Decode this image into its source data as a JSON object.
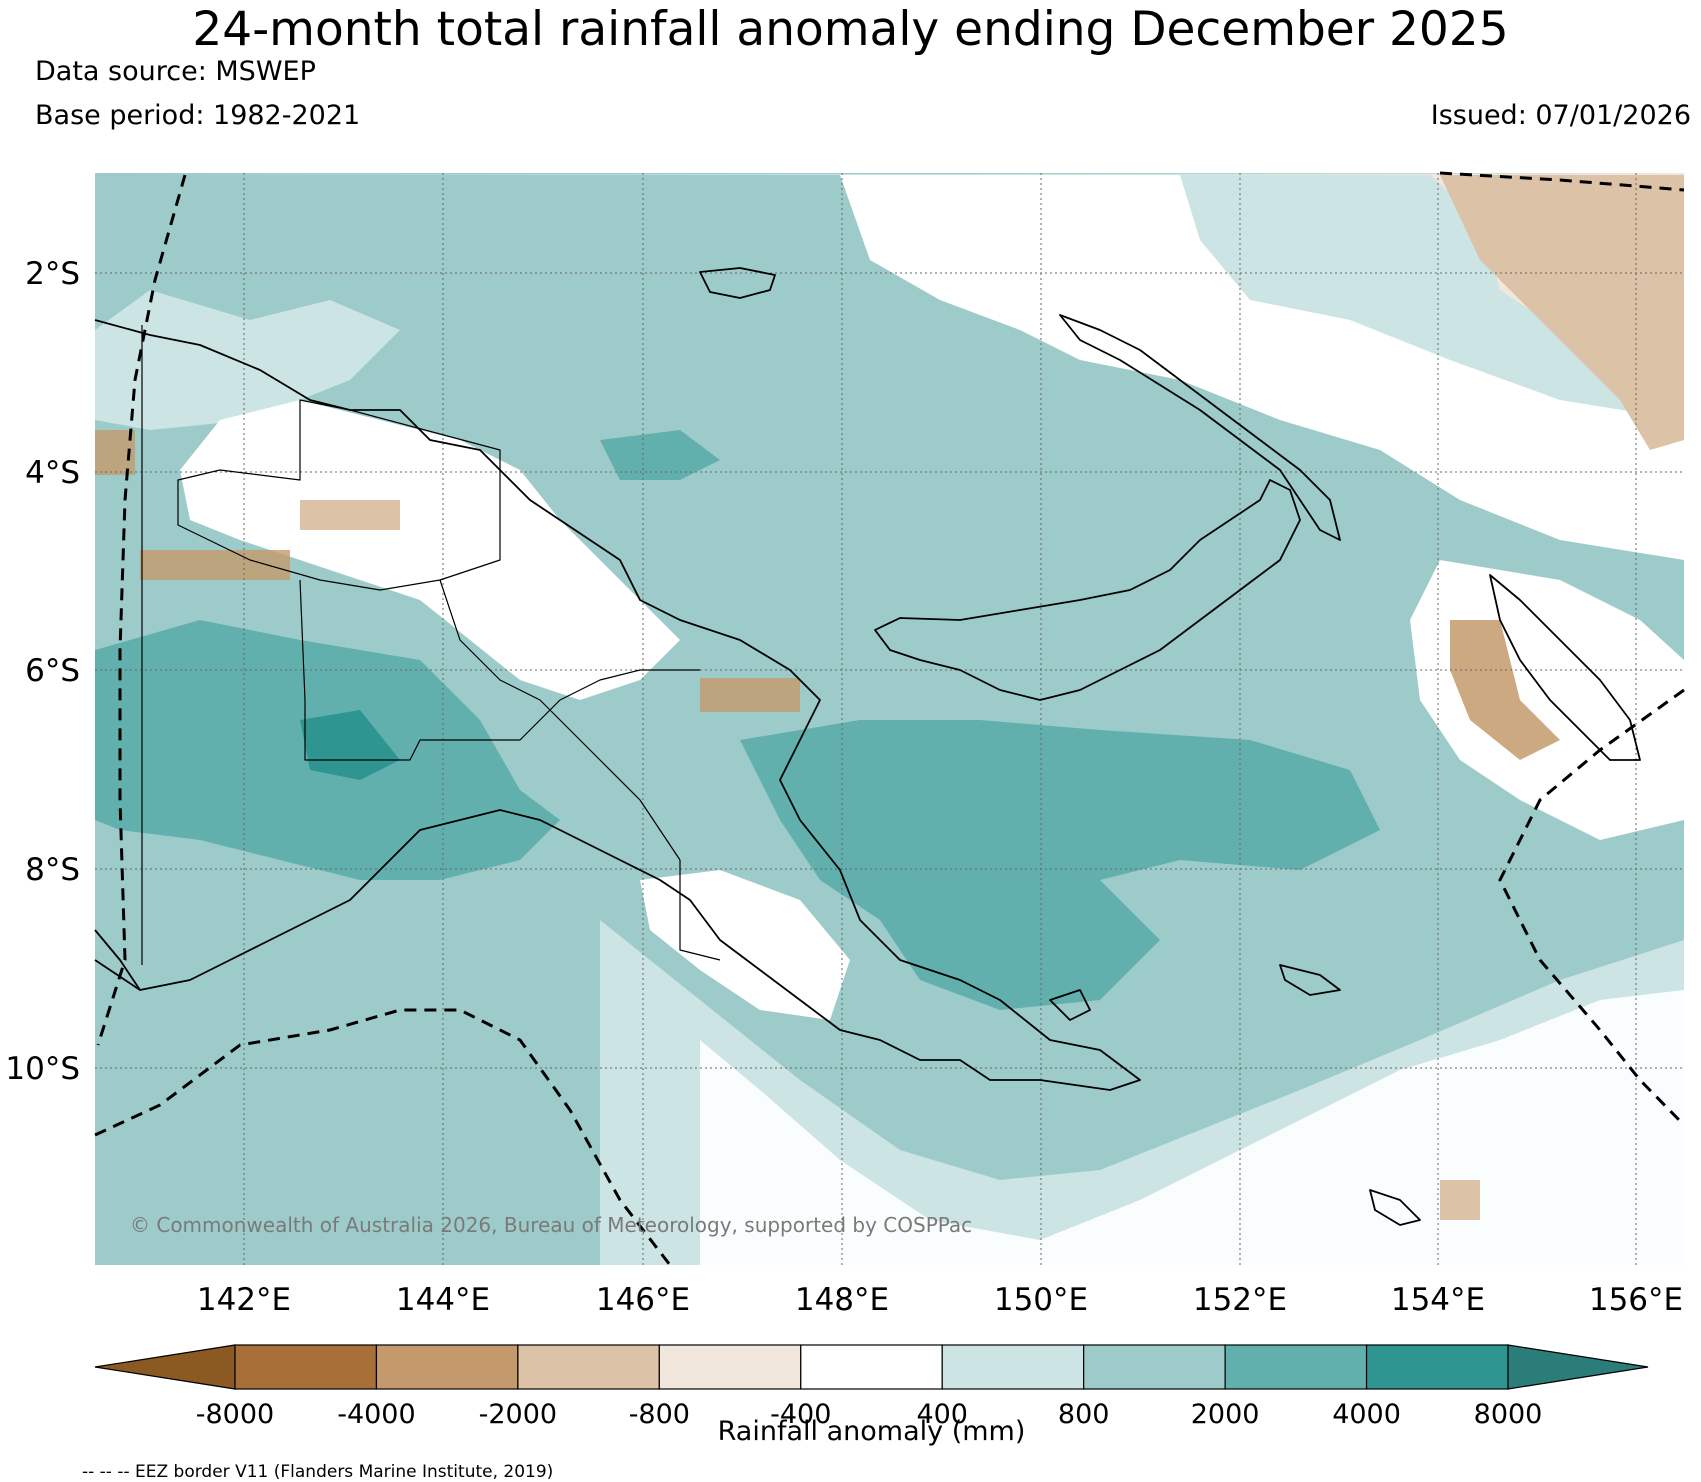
{
  "header": {
    "title": "24-month total rainfall anomaly ending December 2025",
    "data_source": "Data source: MSWEP",
    "base_period": "Base period: 1982-2021",
    "issued": "Issued: 07/01/2026"
  },
  "map": {
    "lat_labels": [
      "2°S",
      "4°S",
      "6°S",
      "8°S",
      "10°S"
    ],
    "lon_labels": [
      "142°E",
      "144°E",
      "146°E",
      "148°E",
      "150°E",
      "152°E",
      "154°E",
      "156°E"
    ],
    "copyright": "© Commonwealth of Australia 2026, Bureau of Meteorology, supported by COSPPac"
  },
  "colorbar": {
    "title": "Rainfall anomaly (mm)",
    "ticks": [
      "-8000",
      "-4000",
      "-2000",
      "-800",
      "-400",
      "400",
      "800",
      "2000",
      "4000",
      "8000"
    ],
    "colors": [
      "#8b5a22",
      "#a87038",
      "#c49a6c",
      "#dcc2a6",
      "#f1e7dd",
      "#ffffff",
      "#cce5e4",
      "#9ccbca",
      "#62b0ae",
      "#2e9590",
      "#2a7d78"
    ]
  },
  "footer": {
    "eez_note": "-- -- -- EEZ border V11 (Flanders Marine Institute, 2019)"
  }
}
